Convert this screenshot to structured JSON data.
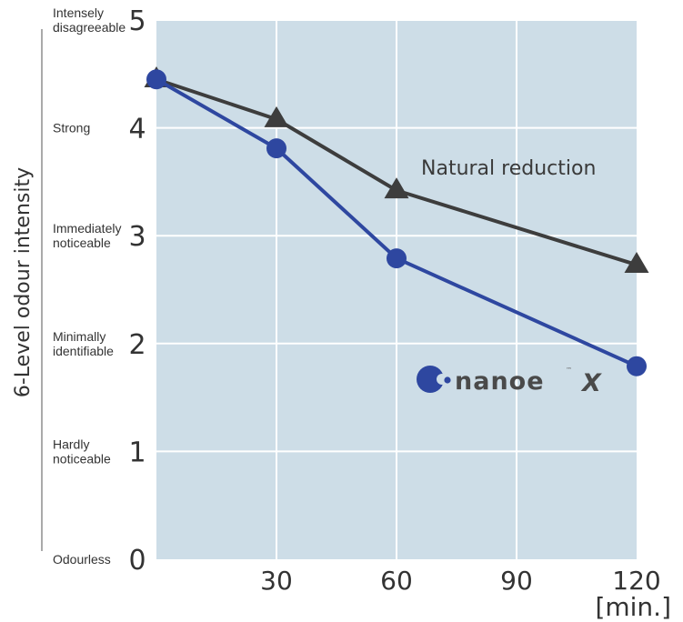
{
  "chart_data": {
    "type": "line",
    "ylabel": "6-Level odour intensity",
    "x_unit": "[min.]",
    "x_ticks": [
      30,
      60,
      90,
      120
    ],
    "y_ticks": [
      0,
      1,
      2,
      3,
      4,
      5
    ],
    "xlim": [
      0,
      120
    ],
    "ylim": [
      0,
      5
    ],
    "y_level_labels": [
      {
        "value": 5,
        "lines": [
          "Intensely",
          "disagreeable"
        ]
      },
      {
        "value": 4,
        "lines": [
          "Strong"
        ]
      },
      {
        "value": 3,
        "lines": [
          "Immediately",
          "noticeable"
        ]
      },
      {
        "value": 2,
        "lines": [
          "Minimally",
          "identifiable"
        ]
      },
      {
        "value": 1,
        "lines": [
          "Hardly",
          "noticeable"
        ]
      },
      {
        "value": 0,
        "lines": [
          "Odourless"
        ]
      }
    ],
    "grid": true,
    "series": [
      {
        "name": "Natural reduction",
        "marker": "triangle",
        "color": "#3d3d3d",
        "x": [
          0,
          30,
          60,
          120
        ],
        "y": [
          4.45,
          4.08,
          3.42,
          2.73
        ]
      },
      {
        "name": "nanoeX",
        "marker": "circle",
        "color": "#2e47a0",
        "x": [
          0,
          30,
          60,
          120
        ],
        "y": [
          4.45,
          3.81,
          2.79,
          1.79
        ]
      }
    ],
    "annotations": {
      "natural_label": "Natural reduction",
      "brand_text": "nanoe",
      "brand_x": "X",
      "brand_tm": "™"
    },
    "colors": {
      "plot_bg": "#cddde7",
      "grid": "#ffffff",
      "natural": "#3d3d3d",
      "nanoe": "#2e47a0"
    }
  }
}
